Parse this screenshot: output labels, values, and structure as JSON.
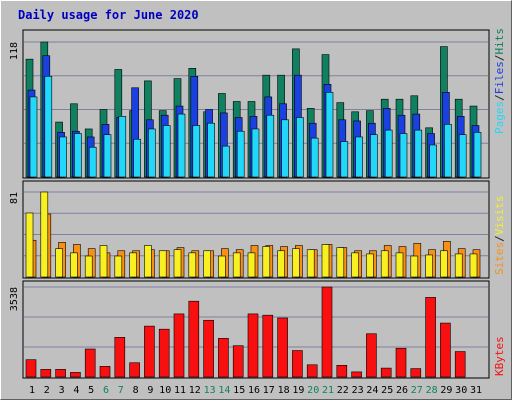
{
  "chart_data": [
    {
      "type": "bar",
      "title": "Daily usage for June 2020",
      "categories": [
        "1",
        "2",
        "3",
        "4",
        "5",
        "6",
        "7",
        "8",
        "9",
        "10",
        "11",
        "12",
        "13",
        "14",
        "15",
        "16",
        "17",
        "18",
        "19",
        "20",
        "21",
        "22",
        "23",
        "24",
        "25",
        "26",
        "27",
        "28",
        "29",
        "30",
        "31"
      ],
      "weekend_days": [
        "6",
        "7",
        "13",
        "14",
        "20",
        "21",
        "27",
        "28"
      ],
      "ylim": [
        0,
        118
      ],
      "ytick_label": "118",
      "series": [
        {
          "name": "Hits",
          "color": "#108060",
          "values": [
            103,
            118,
            48,
            64,
            42,
            59,
            94,
            58,
            84,
            58,
            86,
            95,
            57,
            73,
            66,
            66,
            89,
            89,
            112,
            60,
            107,
            65,
            57,
            58,
            68,
            68,
            71,
            43,
            114,
            68,
            62
          ]
        },
        {
          "name": "Files",
          "color": "#1a40e0",
          "values": [
            76,
            106,
            39,
            40,
            35,
            46,
            52,
            78,
            50,
            54,
            62,
            88,
            59,
            56,
            52,
            53,
            70,
            64,
            89,
            47,
            81,
            50,
            49,
            47,
            60,
            54,
            55,
            38,
            74,
            53,
            45
          ]
        },
        {
          "name": "Pages",
          "color": "#22d8f8",
          "values": [
            70,
            88,
            35,
            38,
            26,
            37,
            53,
            33,
            42,
            45,
            55,
            45,
            47,
            27,
            40,
            42,
            54,
            50,
            52,
            34,
            74,
            31,
            35,
            37,
            41,
            38,
            41,
            28,
            46,
            37,
            39
          ]
        }
      ]
    },
    {
      "type": "bar",
      "categories": [
        "1",
        "2",
        "3",
        "4",
        "5",
        "6",
        "7",
        "8",
        "9",
        "10",
        "11",
        "12",
        "13",
        "14",
        "15",
        "16",
        "17",
        "18",
        "19",
        "20",
        "21",
        "22",
        "23",
        "24",
        "25",
        "26",
        "27",
        "28",
        "29",
        "30",
        "31"
      ],
      "ylim": [
        0,
        81
      ],
      "ytick_label": "81",
      "series": [
        {
          "name": "Visits",
          "color": "#f8f020",
          "values": [
            61,
            81,
            27,
            23,
            20,
            30,
            20,
            23,
            30,
            25,
            26,
            23,
            25,
            20,
            23,
            23,
            29,
            25,
            27,
            26,
            31,
            28,
            23,
            22,
            25,
            23,
            20,
            21,
            25,
            22,
            22
          ]
        },
        {
          "name": "Sites",
          "color": "#f89018",
          "values": [
            35,
            60,
            33,
            31,
            27,
            23,
            25,
            25,
            26,
            25,
            28,
            25,
            25,
            27,
            26,
            30,
            30,
            29,
            30,
            26,
            31,
            28,
            25,
            25,
            30,
            29,
            32,
            26,
            34,
            27,
            26
          ]
        }
      ]
    },
    {
      "type": "bar",
      "categories": [
        "1",
        "2",
        "3",
        "4",
        "5",
        "6",
        "7",
        "8",
        "9",
        "10",
        "11",
        "12",
        "13",
        "14",
        "15",
        "16",
        "17",
        "18",
        "19",
        "20",
        "21",
        "22",
        "23",
        "24",
        "25",
        "26",
        "27",
        "28",
        "29",
        "30",
        "31"
      ],
      "ylim": [
        0,
        3538
      ],
      "ytick_label": "3538",
      "series": [
        {
          "name": "KBytes",
          "color": "#f81010",
          "values": [
            680,
            300,
            300,
            180,
            1100,
            420,
            1560,
            560,
            2000,
            1880,
            2480,
            2980,
            2230,
            1520,
            1230,
            2480,
            2430,
            2320,
            1040,
            480,
            3538,
            460,
            200,
            1700,
            350,
            1130,
            330,
            3130,
            2120,
            1000,
            0
          ]
        }
      ]
    }
  ],
  "legend": {
    "top": [
      {
        "label": "Pages",
        "color": "#22d8f8"
      },
      {
        "label": "/",
        "color": "#202020"
      },
      {
        "label": "Files",
        "color": "#1a40e0"
      },
      {
        "label": "/",
        "color": "#202020"
      },
      {
        "label": "Hits",
        "color": "#108060"
      }
    ],
    "mid": [
      {
        "label": "Sites",
        "color": "#f89018"
      },
      {
        "label": "/",
        "color": "#202020"
      },
      {
        "label": "Visits",
        "color": "#f8f020"
      }
    ],
    "bottom": [
      {
        "label": "KBytes",
        "color": "#f81010"
      }
    ]
  },
  "colors": {
    "plot_bg": "#c0c0c0",
    "outer_bg": "#c0c0c0",
    "grid": "#8080a0",
    "title": "#0000c0",
    "weekday_label": "#000000",
    "weekend_label": "#108060"
  }
}
